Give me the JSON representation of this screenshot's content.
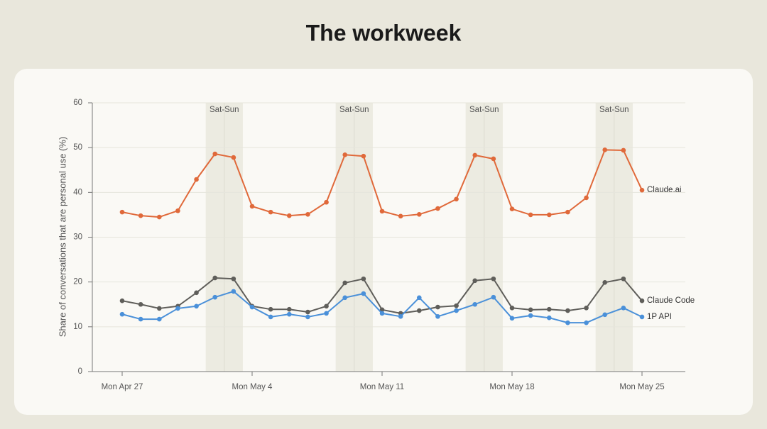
{
  "chart_data": {
    "type": "line",
    "title": "The workweek",
    "y_label": "Share of conversations that are personal use (%)",
    "categories": [
      "Mon Apr 27",
      null,
      null,
      null,
      null,
      null,
      null,
      "Mon May 4",
      null,
      null,
      null,
      null,
      null,
      null,
      "Mon May 11",
      null,
      null,
      null,
      null,
      null,
      null,
      "Mon May 18",
      null,
      null,
      null,
      null,
      null,
      null,
      "Mon May 25"
    ],
    "series": [
      {
        "name": "Claude.ai",
        "color": "#e0693a",
        "values": [
          35.6,
          34.8,
          34.5,
          35.9,
          42.9,
          48.6,
          47.8,
          36.9,
          35.6,
          34.8,
          35.1,
          37.8,
          48.4,
          48.1,
          35.8,
          34.7,
          35.1,
          36.4,
          38.5,
          48.3,
          47.5,
          36.3,
          35.0,
          35.0,
          35.6,
          38.8,
          49.5,
          49.4,
          40.5
        ]
      },
      {
        "name": "Claude Code",
        "color": "#5f5e5a",
        "values": [
          15.8,
          15.0,
          14.1,
          14.6,
          17.6,
          20.9,
          20.7,
          14.6,
          13.9,
          13.9,
          13.3,
          14.6,
          19.8,
          20.7,
          13.8,
          13.0,
          13.6,
          14.4,
          14.7,
          20.3,
          20.7,
          14.2,
          13.8,
          13.9,
          13.6,
          14.2,
          19.9,
          20.7,
          15.8
        ]
      },
      {
        "name": "1P API",
        "color": "#4a90d9",
        "values": [
          12.8,
          11.7,
          11.7,
          14.1,
          14.6,
          16.6,
          17.9,
          14.4,
          12.2,
          12.8,
          12.2,
          13.0,
          16.5,
          17.4,
          13.0,
          12.3,
          16.5,
          12.3,
          13.6,
          15.0,
          16.6,
          11.9,
          12.5,
          12.0,
          10.9,
          10.9,
          12.7,
          14.2,
          12.2
        ]
      }
    ],
    "annotations": [
      {
        "text": "Sat-Sun",
        "start": 5,
        "end": 6
      },
      {
        "text": "Sat-Sun",
        "start": 12,
        "end": 13
      },
      {
        "text": "Sat-Sun",
        "start": 19,
        "end": 20
      },
      {
        "text": "Sat-Sun",
        "start": 26,
        "end": 27
      }
    ],
    "ylim": [
      0,
      60
    ],
    "yticks": [
      0,
      10,
      20,
      30,
      40,
      50,
      60
    ],
    "grid": true
  }
}
